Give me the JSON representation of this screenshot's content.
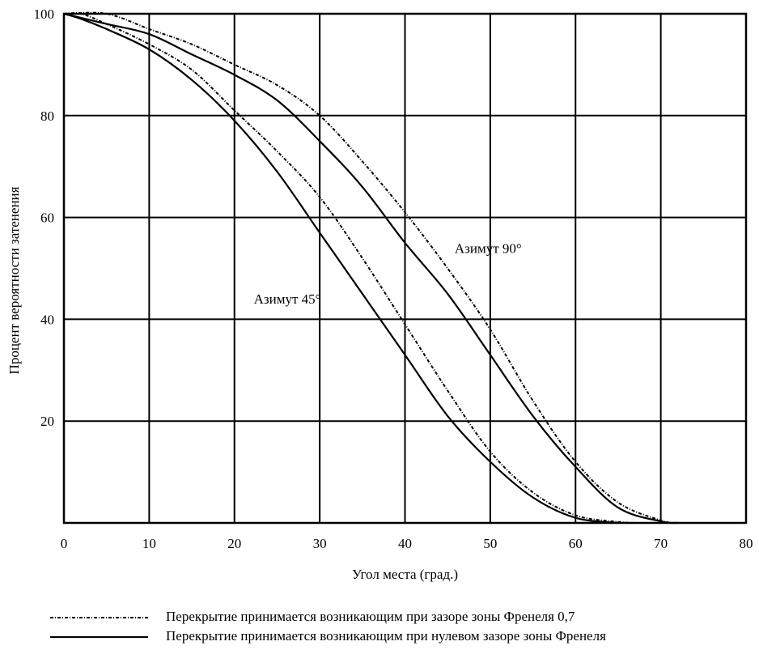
{
  "chart_data": {
    "type": "line",
    "xlabel": "Угол места (град.)",
    "ylabel": "Процент вероятности затенения",
    "xlim": [
      0,
      80
    ],
    "ylim": [
      0,
      100
    ],
    "xticks": [
      "0",
      "10",
      "20",
      "30",
      "40",
      "50",
      "60",
      "70",
      "80"
    ],
    "yticks": [
      "20",
      "40",
      "60",
      "80",
      "100"
    ],
    "grid": true,
    "annotations": [
      {
        "text": "Азимут 45°",
        "x": 31,
        "y": 44
      },
      {
        "text": "Азимут 90°",
        "x": 50,
        "y": 54
      }
    ],
    "legend_position": "bottom",
    "series": [
      {
        "name": "Перекрытие принимается возникающим при зазоре зоны Френеля 0,7",
        "style": "dotted",
        "group": "Азимут 45°",
        "x": [
          0,
          2,
          5,
          10,
          15,
          20,
          25,
          30,
          35,
          40,
          45,
          50,
          55,
          60,
          65,
          68
        ],
        "y": [
          100,
          100,
          98,
          94,
          89,
          81,
          73,
          64,
          52,
          39,
          26,
          14,
          6,
          1.5,
          0.2,
          0
        ]
      },
      {
        "name": "Перекрытие принимается возникающим при нулевом зазоре зоны Френеля",
        "style": "solid",
        "group": "Азимут 45°",
        "x": [
          0,
          2,
          5,
          10,
          15,
          20,
          25,
          30,
          35,
          40,
          45,
          50,
          55,
          60,
          65
        ],
        "y": [
          100,
          99,
          97,
          93,
          87,
          79,
          69,
          57,
          45,
          33,
          21,
          12,
          5,
          1,
          0
        ]
      },
      {
        "name": "Перекрытие принимается возникающим при зазоре зоны Френеля 0,7",
        "style": "dotted",
        "group": "Азимут 90°",
        "x": [
          0,
          5,
          10,
          15,
          20,
          25,
          30,
          35,
          40,
          45,
          50,
          55,
          60,
          65,
          70,
          72
        ],
        "y": [
          100,
          100,
          97,
          94,
          90,
          86,
          80,
          71,
          61,
          50,
          38,
          24,
          12,
          4,
          0.5,
          0
        ]
      },
      {
        "name": "Перекрытие принимается возникающим при нулевом зазоре зоны Френеля",
        "style": "solid",
        "group": "Азимут 90°",
        "x": [
          0,
          5,
          10,
          15,
          20,
          25,
          30,
          35,
          40,
          45,
          50,
          55,
          60,
          65,
          70,
          72
        ],
        "y": [
          100,
          98,
          96,
          92,
          88,
          83,
          75,
          66,
          55,
          45,
          33,
          21,
          11,
          3,
          0.3,
          0
        ]
      }
    ]
  }
}
